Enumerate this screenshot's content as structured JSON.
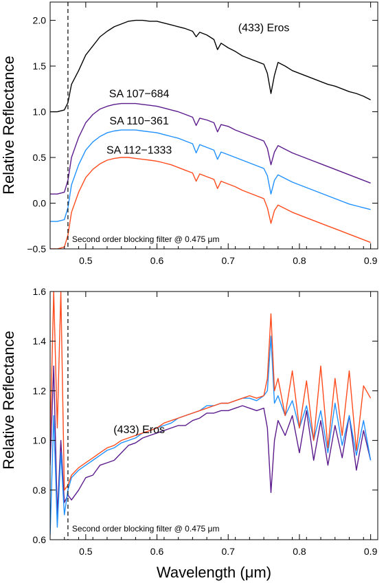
{
  "chart_data": [
    {
      "type": "line",
      "ylabel": "Relative Reflectance",
      "xlim": [
        0.45,
        0.91
      ],
      "ylim": [
        -0.5,
        2.2
      ],
      "xticks": [
        0.5,
        0.6,
        0.7,
        0.8,
        0.9
      ],
      "xtick_labels": [
        "0.5",
        "0.6",
        "0.7",
        "0.8",
        "0.9"
      ],
      "yticks": [
        -0.5,
        0.0,
        0.5,
        1.0,
        1.5,
        2.0
      ],
      "ytick_labels": [
        "−0.5",
        "0.0",
        "0.5",
        "1.0",
        "1.5",
        "2.0"
      ],
      "vline": {
        "x": 0.475,
        "label": "Second order blocking filter @ 0.475 μm"
      },
      "series": [
        {
          "name": "(433) Eros",
          "color": "#000000",
          "x": [
            0.45,
            0.46,
            0.47,
            0.475,
            0.48,
            0.49,
            0.5,
            0.51,
            0.52,
            0.53,
            0.54,
            0.55,
            0.56,
            0.57,
            0.58,
            0.59,
            0.6,
            0.61,
            0.62,
            0.63,
            0.64,
            0.65,
            0.655,
            0.66,
            0.67,
            0.68,
            0.685,
            0.69,
            0.7,
            0.71,
            0.72,
            0.73,
            0.74,
            0.75,
            0.755,
            0.76,
            0.765,
            0.77,
            0.78,
            0.79,
            0.8,
            0.81,
            0.82,
            0.83,
            0.84,
            0.85,
            0.86,
            0.87,
            0.88,
            0.89,
            0.9
          ],
          "y": [
            1.0,
            1.0,
            1.02,
            1.1,
            1.3,
            1.45,
            1.62,
            1.72,
            1.82,
            1.88,
            1.93,
            1.96,
            1.99,
            2.0,
            2.0,
            1.99,
            1.99,
            1.97,
            1.95,
            1.93,
            1.91,
            1.88,
            1.82,
            1.87,
            1.84,
            1.79,
            1.68,
            1.75,
            1.7,
            1.66,
            1.61,
            1.58,
            1.55,
            1.52,
            1.42,
            1.2,
            1.4,
            1.54,
            1.5,
            1.45,
            1.42,
            1.39,
            1.36,
            1.33,
            1.3,
            1.28,
            1.25,
            1.22,
            1.2,
            1.17,
            1.13
          ]
        },
        {
          "name": "SA 107−684",
          "color": "#5b1a8c",
          "x": [
            0.45,
            0.46,
            0.47,
            0.475,
            0.48,
            0.49,
            0.5,
            0.51,
            0.52,
            0.53,
            0.54,
            0.55,
            0.56,
            0.57,
            0.58,
            0.59,
            0.6,
            0.61,
            0.62,
            0.63,
            0.64,
            0.65,
            0.655,
            0.66,
            0.67,
            0.68,
            0.685,
            0.69,
            0.7,
            0.71,
            0.72,
            0.73,
            0.74,
            0.75,
            0.755,
            0.76,
            0.765,
            0.77,
            0.78,
            0.79,
            0.8,
            0.81,
            0.82,
            0.83,
            0.84,
            0.85,
            0.86,
            0.87,
            0.88,
            0.89,
            0.9
          ],
          "y": [
            0.1,
            0.1,
            0.12,
            0.25,
            0.5,
            0.72,
            0.88,
            0.97,
            1.03,
            1.06,
            1.08,
            1.09,
            1.09,
            1.09,
            1.08,
            1.07,
            1.06,
            1.04,
            1.02,
            1.0,
            0.97,
            0.94,
            0.85,
            0.93,
            0.91,
            0.88,
            0.78,
            0.86,
            0.84,
            0.8,
            0.77,
            0.74,
            0.71,
            0.68,
            0.6,
            0.42,
            0.56,
            0.63,
            0.59,
            0.55,
            0.52,
            0.49,
            0.46,
            0.43,
            0.4,
            0.37,
            0.34,
            0.31,
            0.28,
            0.25,
            0.22
          ]
        },
        {
          "name": "SA 110−361",
          "color": "#1e90ff",
          "x": [
            0.45,
            0.46,
            0.47,
            0.475,
            0.48,
            0.49,
            0.5,
            0.51,
            0.52,
            0.53,
            0.54,
            0.55,
            0.56,
            0.57,
            0.58,
            0.59,
            0.6,
            0.61,
            0.62,
            0.63,
            0.64,
            0.65,
            0.655,
            0.66,
            0.67,
            0.68,
            0.685,
            0.69,
            0.7,
            0.71,
            0.72,
            0.73,
            0.74,
            0.75,
            0.755,
            0.76,
            0.765,
            0.77,
            0.78,
            0.79,
            0.8,
            0.81,
            0.82,
            0.83,
            0.84,
            0.85,
            0.86,
            0.87,
            0.88,
            0.89,
            0.9
          ],
          "y": [
            -0.2,
            -0.2,
            -0.18,
            -0.05,
            0.2,
            0.42,
            0.58,
            0.67,
            0.73,
            0.77,
            0.79,
            0.8,
            0.8,
            0.8,
            0.79,
            0.78,
            0.77,
            0.75,
            0.73,
            0.71,
            0.68,
            0.65,
            0.55,
            0.64,
            0.61,
            0.58,
            0.48,
            0.56,
            0.53,
            0.5,
            0.47,
            0.44,
            0.41,
            0.38,
            0.3,
            0.1,
            0.25,
            0.31,
            0.27,
            0.23,
            0.2,
            0.17,
            0.14,
            0.11,
            0.08,
            0.05,
            0.02,
            -0.01,
            -0.03,
            -0.05,
            -0.07
          ]
        },
        {
          "name": "SA 112−1333",
          "color": "#ff4a1c",
          "x": [
            0.45,
            0.46,
            0.47,
            0.475,
            0.48,
            0.49,
            0.5,
            0.51,
            0.52,
            0.53,
            0.54,
            0.55,
            0.56,
            0.57,
            0.58,
            0.59,
            0.6,
            0.61,
            0.62,
            0.63,
            0.64,
            0.65,
            0.655,
            0.66,
            0.67,
            0.68,
            0.685,
            0.69,
            0.7,
            0.71,
            0.72,
            0.73,
            0.74,
            0.75,
            0.755,
            0.76,
            0.765,
            0.77,
            0.78,
            0.79,
            0.8,
            0.81,
            0.82,
            0.83,
            0.84,
            0.85,
            0.86,
            0.87,
            0.88,
            0.89,
            0.9
          ],
          "y": [
            -0.5,
            -0.5,
            -0.48,
            -0.35,
            -0.1,
            0.12,
            0.28,
            0.37,
            0.43,
            0.47,
            0.49,
            0.5,
            0.5,
            0.49,
            0.48,
            0.47,
            0.46,
            0.44,
            0.42,
            0.39,
            0.36,
            0.33,
            0.24,
            0.32,
            0.29,
            0.26,
            0.16,
            0.24,
            0.21,
            0.18,
            0.14,
            0.11,
            0.08,
            0.05,
            -0.05,
            -0.22,
            -0.08,
            -0.02,
            -0.06,
            -0.1,
            -0.13,
            -0.16,
            -0.19,
            -0.22,
            -0.25,
            -0.28,
            -0.31,
            -0.34,
            -0.37,
            -0.4,
            -0.43
          ]
        }
      ],
      "annotations": [
        {
          "text": "(433) Eros",
          "x": 0.75,
          "y": 1.88
        },
        {
          "text": "SA 107−684",
          "x": 0.575,
          "y": 1.16
        },
        {
          "text": "SA 110−361",
          "x": 0.575,
          "y": 0.86
        },
        {
          "text": "SA 112−1333",
          "x": 0.575,
          "y": 0.54
        }
      ]
    },
    {
      "type": "line",
      "xlabel": "Wavelength (μm)",
      "ylabel": "Relative Reflectance",
      "xlim": [
        0.45,
        0.91
      ],
      "ylim": [
        0.6,
        1.6
      ],
      "xticks": [
        0.5,
        0.6,
        0.7,
        0.8,
        0.9
      ],
      "xtick_labels": [
        "0.5",
        "0.6",
        "0.7",
        "0.8",
        "0.9"
      ],
      "yticks": [
        0.6,
        0.8,
        1.0,
        1.2,
        1.4,
        1.6
      ],
      "ytick_labels": [
        "0.6",
        "0.8",
        "1.0",
        "1.2",
        "1.4",
        "1.6"
      ],
      "vline": {
        "x": 0.475,
        "label": "Second order blocking filter @ 0.475 μm"
      },
      "series": [
        {
          "color": "#5b1a8c",
          "x": [
            0.45,
            0.455,
            0.46,
            0.465,
            0.47,
            0.475,
            0.48,
            0.49,
            0.5,
            0.51,
            0.52,
            0.53,
            0.54,
            0.55,
            0.56,
            0.57,
            0.58,
            0.59,
            0.6,
            0.61,
            0.62,
            0.63,
            0.64,
            0.65,
            0.66,
            0.67,
            0.68,
            0.69,
            0.7,
            0.71,
            0.72,
            0.73,
            0.74,
            0.75,
            0.755,
            0.76,
            0.765,
            0.77,
            0.78,
            0.79,
            0.8,
            0.81,
            0.82,
            0.83,
            0.84,
            0.85,
            0.86,
            0.87,
            0.88,
            0.89,
            0.9
          ],
          "y": [
            0.9,
            1.3,
            0.7,
            1.0,
            0.75,
            0.78,
            0.76,
            0.8,
            0.85,
            0.86,
            0.9,
            0.91,
            0.92,
            0.95,
            0.98,
            0.99,
            1.01,
            1.02,
            1.03,
            1.04,
            1.05,
            1.06,
            1.06,
            1.08,
            1.09,
            1.11,
            1.11,
            1.12,
            1.12,
            1.13,
            1.14,
            1.13,
            1.12,
            1.13,
            1.05,
            0.79,
            1.0,
            1.08,
            1.02,
            1.1,
            0.95,
            1.12,
            0.92,
            1.08,
            0.9,
            1.06,
            0.93,
            1.1,
            0.88,
            1.04,
            0.92
          ]
        },
        {
          "color": "#1e90ff",
          "x": [
            0.45,
            0.455,
            0.46,
            0.465,
            0.47,
            0.475,
            0.48,
            0.49,
            0.5,
            0.51,
            0.52,
            0.53,
            0.54,
            0.55,
            0.56,
            0.57,
            0.58,
            0.59,
            0.6,
            0.61,
            0.62,
            0.63,
            0.64,
            0.65,
            0.66,
            0.67,
            0.68,
            0.69,
            0.7,
            0.71,
            0.72,
            0.73,
            0.74,
            0.75,
            0.755,
            0.76,
            0.765,
            0.77,
            0.78,
            0.79,
            0.8,
            0.81,
            0.82,
            0.83,
            0.84,
            0.85,
            0.86,
            0.87,
            0.88,
            0.89,
            0.9
          ],
          "y": [
            0.62,
            1.1,
            0.65,
            0.95,
            0.7,
            0.8,
            0.85,
            0.88,
            0.9,
            0.92,
            0.94,
            0.96,
            0.97,
            0.99,
            1.0,
            1.01,
            1.03,
            1.04,
            1.05,
            1.06,
            1.07,
            1.09,
            1.1,
            1.11,
            1.12,
            1.14,
            1.14,
            1.15,
            1.15,
            1.16,
            1.17,
            1.17,
            1.16,
            1.18,
            1.2,
            1.42,
            1.15,
            1.18,
            1.1,
            1.16,
            1.05,
            1.14,
            1.0,
            1.12,
            0.95,
            1.15,
            0.98,
            1.1,
            0.94,
            1.08,
            0.92
          ]
        },
        {
          "color": "#ff4a1c",
          "x": [
            0.45,
            0.455,
            0.46,
            0.465,
            0.47,
            0.475,
            0.48,
            0.49,
            0.5,
            0.51,
            0.52,
            0.53,
            0.54,
            0.55,
            0.56,
            0.57,
            0.58,
            0.59,
            0.6,
            0.61,
            0.62,
            0.63,
            0.64,
            0.65,
            0.66,
            0.67,
            0.68,
            0.69,
            0.7,
            0.71,
            0.72,
            0.73,
            0.74,
            0.75,
            0.755,
            0.76,
            0.765,
            0.77,
            0.78,
            0.79,
            0.8,
            0.81,
            0.82,
            0.83,
            0.84,
            0.85,
            0.86,
            0.87,
            0.88,
            0.89,
            0.9
          ],
          "y": [
            1.0,
            1.6,
            1.05,
            1.6,
            0.8,
            0.82,
            0.86,
            0.89,
            0.91,
            0.93,
            0.95,
            0.97,
            0.98,
            1.0,
            1.01,
            1.02,
            1.03,
            1.04,
            1.05,
            1.07,
            1.08,
            1.09,
            1.1,
            1.11,
            1.12,
            1.13,
            1.14,
            1.15,
            1.15,
            1.16,
            1.17,
            1.18,
            1.17,
            1.18,
            1.25,
            1.51,
            1.2,
            1.25,
            1.1,
            1.28,
            1.05,
            1.24,
            1.0,
            1.3,
            0.97,
            1.25,
            1.02,
            1.28,
            0.96,
            1.22,
            1.17
          ]
        }
      ],
      "annotations": [
        {
          "text": "(433) Eros",
          "x": 0.575,
          "y": 1.03
        }
      ]
    }
  ]
}
